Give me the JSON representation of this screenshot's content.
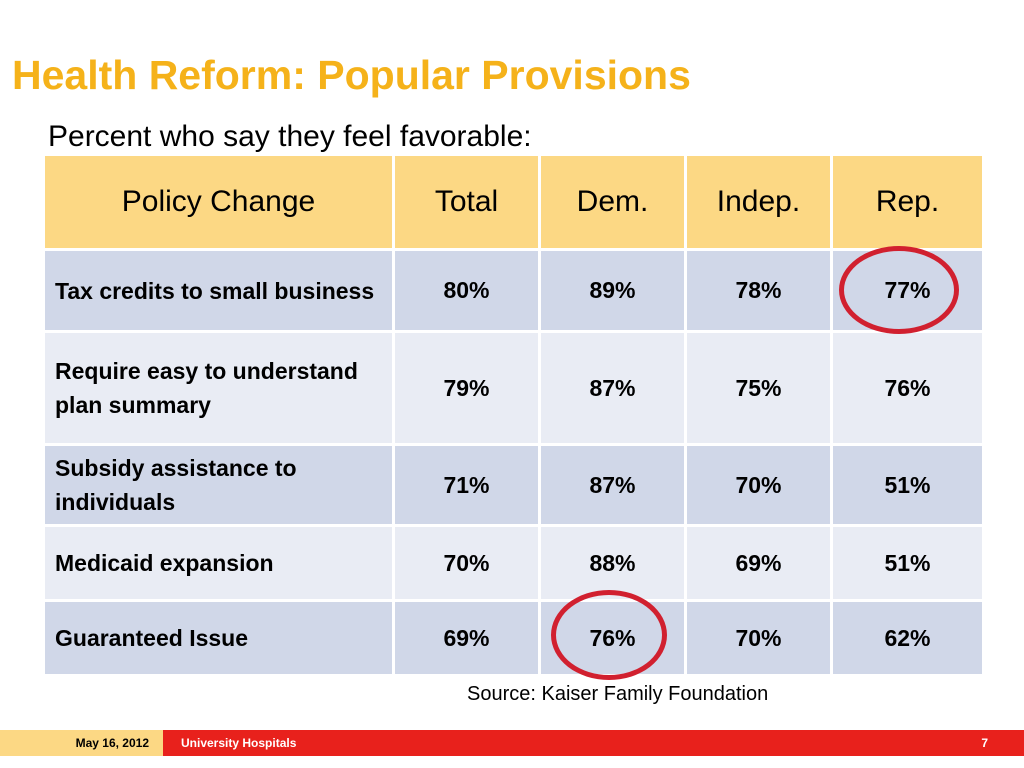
{
  "slide": {
    "title": "Health Reform: Popular Provisions",
    "subtitle": "Percent who say they feel favorable:"
  },
  "table": {
    "headers": [
      "Policy Change",
      "Total",
      "Dem.",
      "Indep.",
      "Rep."
    ],
    "rows": [
      {
        "label": "Tax credits to small business",
        "total": "80%",
        "dem": "89%",
        "indep": "78%",
        "rep": "77%"
      },
      {
        "label": "Require easy to understand plan summary",
        "total": "79%",
        "dem": "87%",
        "indep": "75%",
        "rep": "76%"
      },
      {
        "label": "Subsidy assistance to individuals",
        "total": "71%",
        "dem": "87%",
        "indep": "70%",
        "rep": "51%"
      },
      {
        "label": "Medicaid expansion",
        "total": "70%",
        "dem": "88%",
        "indep": "69%",
        "rep": "51%"
      },
      {
        "label": "Guaranteed Issue",
        "total": "69%",
        "dem": "76%",
        "indep": "70%",
        "rep": "62%"
      }
    ]
  },
  "source": "Source: Kaiser Family Foundation",
  "footer": {
    "date": "May 16, 2012",
    "organization": "University Hospitals",
    "page_number": "7"
  },
  "colors": {
    "title": "#f5b21a",
    "header_fill": "#fcd884",
    "row_dark": "#d0d7e8",
    "row_light": "#e9ecf4",
    "highlight_circle": "#d1202f",
    "footer_bar": "#e8211c"
  }
}
